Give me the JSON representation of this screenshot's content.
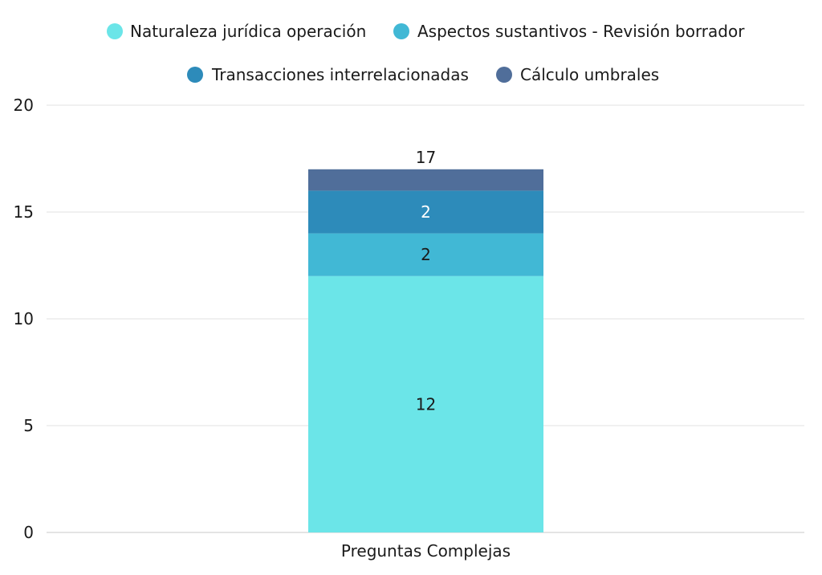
{
  "chart_data": {
    "type": "bar",
    "stacked": true,
    "categories": [
      "Preguntas Complejas"
    ],
    "series": [
      {
        "name": "Naturaleza jurídica operación",
        "values": [
          12
        ],
        "color": "#6be5e8",
        "label_color": "#1a1a1a"
      },
      {
        "name": "Aspectos sustantivos - Revisión borrador",
        "values": [
          2
        ],
        "color": "#41b8d5",
        "label_color": "#1a1a1a"
      },
      {
        "name": "Transacciones interrelacionadas",
        "values": [
          2
        ],
        "color": "#2d8bba",
        "label_color": "#ffffff"
      },
      {
        "name": "Cálculo umbrales",
        "values": [
          1
        ],
        "color": "#506e9a",
        "label_color": "#ffffff"
      }
    ],
    "data_labels": [
      "12",
      "2",
      "2",
      ""
    ],
    "total_label": "17",
    "ylim": [
      0,
      20
    ],
    "yticks": [
      "0",
      "5",
      "10",
      "15",
      "20"
    ],
    "grid": true,
    "legend_position": "top-center",
    "title": "",
    "xlabel": "",
    "ylabel": ""
  }
}
